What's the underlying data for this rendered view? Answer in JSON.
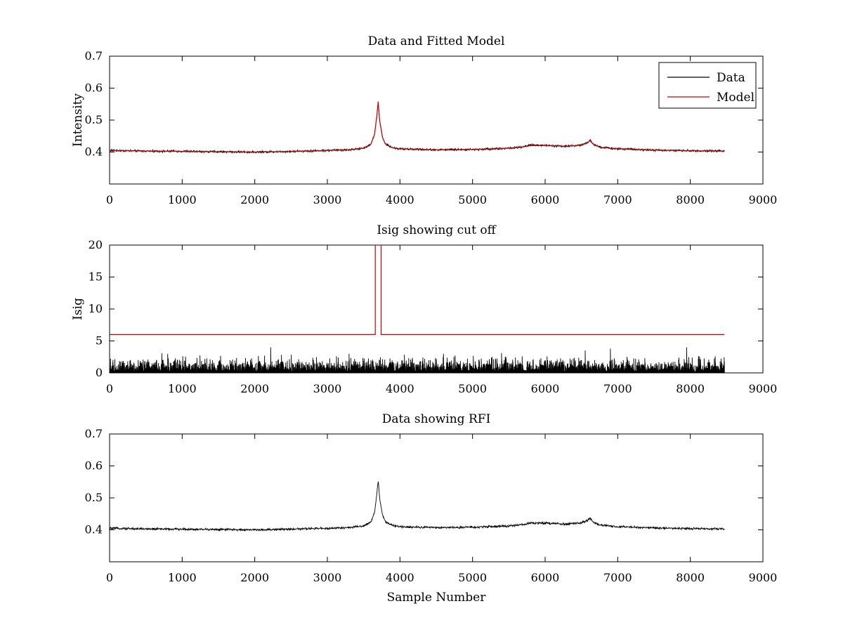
{
  "figure": {
    "background": "#ffffff",
    "line_colors": {
      "Data": "#000000",
      "Model": "#cc0000"
    }
  },
  "chart_data": [
    {
      "type": "line",
      "title": "Data and Fitted Model",
      "xlabel": "",
      "ylabel": "Intensity",
      "xlim": [
        0,
        9000
      ],
      "ylim": [
        0.3,
        0.7
      ],
      "xticks": [
        0,
        1000,
        2000,
        3000,
        4000,
        5000,
        6000,
        7000,
        8000,
        9000
      ],
      "yticks": [
        0.4,
        0.5,
        0.6,
        0.7
      ],
      "grid": false,
      "legend": {
        "position": "top-right",
        "entries": [
          "Data",
          "Model"
        ]
      },
      "series": [
        {
          "name": "Data",
          "color": "#000000",
          "noise_amplitude": 0.004,
          "x": [
            0,
            500,
            1000,
            1500,
            2000,
            2500,
            3000,
            3300,
            3500,
            3600,
            3650,
            3680,
            3700,
            3720,
            3760,
            3800,
            3900,
            4000,
            4500,
            5000,
            5500,
            5700,
            5800,
            6000,
            6300,
            6500,
            6580,
            6620,
            6660,
            6750,
            7000,
            7500,
            8000,
            8470
          ],
          "y": [
            0.405,
            0.403,
            0.402,
            0.401,
            0.4,
            0.402,
            0.405,
            0.407,
            0.412,
            0.425,
            0.455,
            0.51,
            0.555,
            0.5,
            0.445,
            0.425,
            0.413,
            0.41,
            0.407,
            0.408,
            0.412,
            0.416,
            0.422,
            0.421,
            0.418,
            0.422,
            0.428,
            0.438,
            0.425,
            0.415,
            0.41,
            0.406,
            0.404,
            0.403
          ]
        },
        {
          "name": "Model",
          "color": "#cc0000",
          "x": [
            0,
            500,
            1000,
            1500,
            2000,
            2500,
            3000,
            3300,
            3500,
            3600,
            3650,
            3680,
            3700,
            3720,
            3760,
            3800,
            3900,
            4000,
            4500,
            5000,
            5500,
            5700,
            5800,
            6000,
            6300,
            6500,
            6580,
            6620,
            6660,
            6750,
            7000,
            7500,
            8000,
            8470
          ],
          "y": [
            0.405,
            0.403,
            0.402,
            0.401,
            0.4,
            0.402,
            0.405,
            0.407,
            0.412,
            0.425,
            0.455,
            0.51,
            0.558,
            0.5,
            0.445,
            0.425,
            0.413,
            0.41,
            0.407,
            0.408,
            0.412,
            0.416,
            0.42,
            0.42,
            0.418,
            0.422,
            0.428,
            0.436,
            0.425,
            0.415,
            0.41,
            0.406,
            0.404,
            0.403
          ]
        }
      ]
    },
    {
      "type": "line",
      "title": "Isig showing cut off",
      "xlabel": "",
      "ylabel": "Isig",
      "xlim": [
        0,
        9000
      ],
      "ylim": [
        0,
        20
      ],
      "xticks": [
        0,
        1000,
        2000,
        3000,
        4000,
        5000,
        6000,
        7000,
        8000,
        9000
      ],
      "yticks": [
        0,
        5,
        10,
        15,
        20
      ],
      "grid": false,
      "series": [
        {
          "name": "Isig",
          "color": "#000000",
          "noise_amplitude": 2.2,
          "spikes": [
            [
              800,
              3.0
            ],
            [
              2220,
              4.0
            ],
            [
              3300,
              3.0
            ],
            [
              4600,
              3.0
            ],
            [
              5400,
              3.1
            ],
            [
              6550,
              3.5
            ],
            [
              6900,
              3.8
            ],
            [
              7950,
              4.0
            ]
          ],
          "x": [
            0,
            8470
          ],
          "y": [
            0,
            0
          ]
        },
        {
          "name": "cut off",
          "color": "#cc0000",
          "x": [
            0,
            3660,
            3660,
            3710,
            3710,
            3740,
            3740,
            8470
          ],
          "y": [
            6,
            6,
            20,
            20,
            20,
            20,
            6,
            6
          ]
        }
      ]
    },
    {
      "type": "line",
      "title": "Data showing RFI",
      "xlabel": "Sample Number",
      "ylabel": "",
      "xlim": [
        0,
        9000
      ],
      "ylim": [
        0.3,
        0.7
      ],
      "xticks": [
        0,
        1000,
        2000,
        3000,
        4000,
        5000,
        6000,
        7000,
        8000,
        9000
      ],
      "yticks": [
        0.4,
        0.5,
        0.6,
        0.7
      ],
      "grid": false,
      "series": [
        {
          "name": "Data",
          "color": "#000000",
          "noise_amplitude": 0.004,
          "x": [
            0,
            500,
            1000,
            1500,
            2000,
            2500,
            3000,
            3300,
            3500,
            3600,
            3650,
            3680,
            3700,
            3720,
            3760,
            3800,
            3900,
            4000,
            4500,
            5000,
            5500,
            5700,
            5800,
            6000,
            6300,
            6500,
            6580,
            6620,
            6660,
            6750,
            7000,
            7500,
            8000,
            8470
          ],
          "y": [
            0.405,
            0.403,
            0.402,
            0.401,
            0.4,
            0.402,
            0.405,
            0.407,
            0.412,
            0.425,
            0.455,
            0.51,
            0.555,
            0.5,
            0.445,
            0.425,
            0.413,
            0.41,
            0.407,
            0.408,
            0.412,
            0.416,
            0.422,
            0.421,
            0.418,
            0.422,
            0.428,
            0.438,
            0.425,
            0.415,
            0.41,
            0.406,
            0.404,
            0.403
          ]
        }
      ]
    }
  ]
}
